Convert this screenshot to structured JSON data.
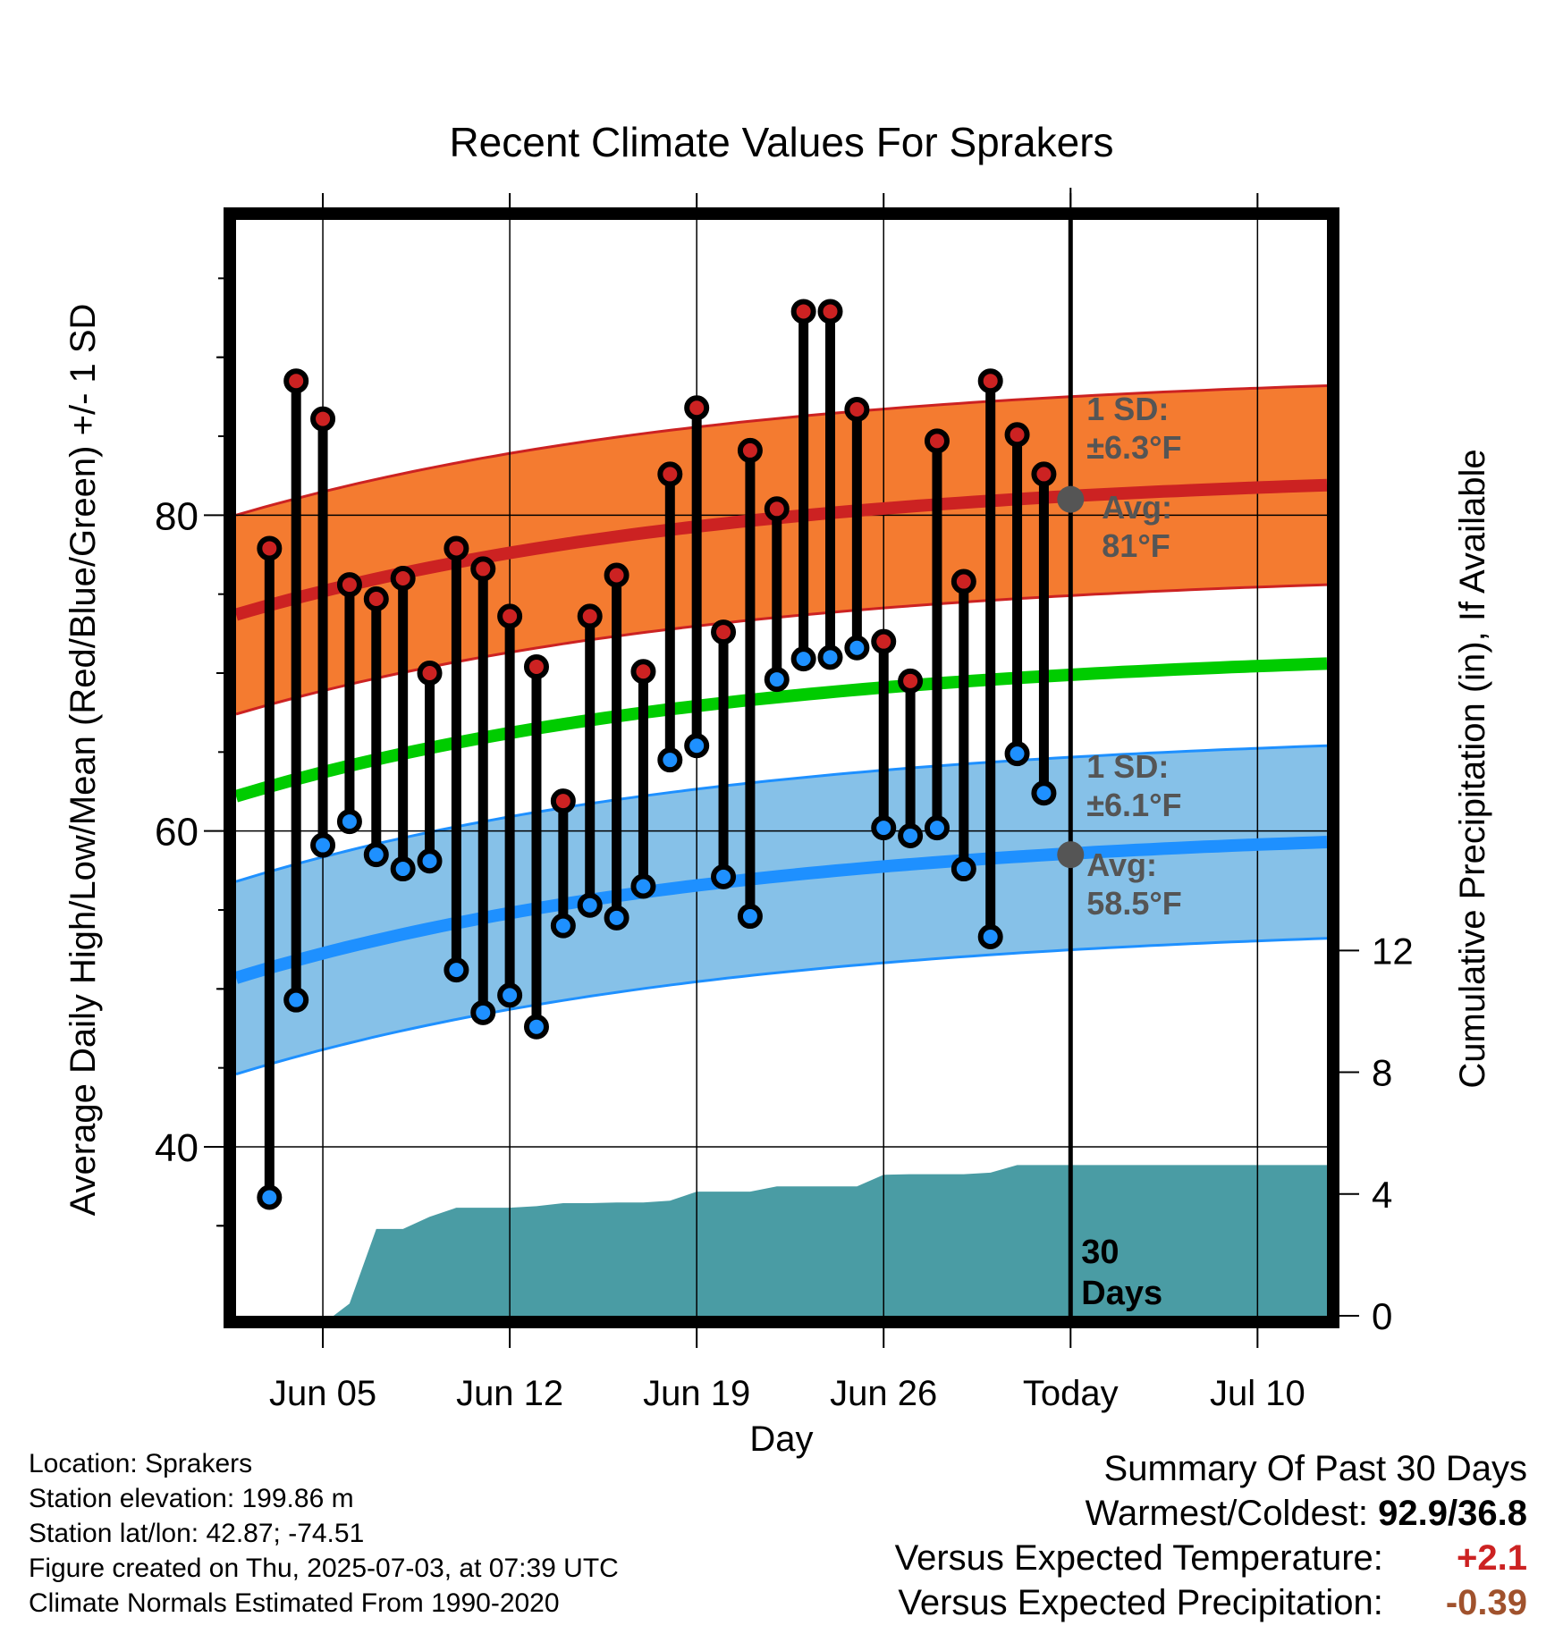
{
  "chart_data": {
    "type": "line",
    "title": "Recent Climate Values For Sprakers",
    "xlabel": "Day",
    "ylabel": "Average Daily High/Low/Mean (Red/Blue/Green) +/- 1 SD",
    "y2label": "Cumulative Precipitation (in), If Available",
    "x_tick_labels": [
      "Jun 05",
      "Jun 12",
      "Jun 19",
      "Jun 26",
      "Today",
      "Jul 10"
    ],
    "x_tick_days": [
      5,
      12,
      19,
      26,
      33,
      40
    ],
    "xlim": [
      1.75,
      42.6
    ],
    "ylim": [
      29.3,
      98.7
    ],
    "y_ticks": [
      40,
      60,
      80
    ],
    "y2lim": [
      0,
      36
    ],
    "y2_ticks": [
      0,
      4,
      8,
      12
    ],
    "today_day": 33,
    "today_label_lines": [
      "30",
      "Days"
    ],
    "normal_high": {
      "start": 73.7,
      "end": 81.9,
      "sd": 6.3,
      "color": "#cc2222",
      "band_color": "#f47b30"
    },
    "normal_low": {
      "start": 50.7,
      "end": 59.3,
      "sd": 6.1,
      "color": "#1e90ff",
      "band_color": "#86c1e8"
    },
    "normal_mean": {
      "start": 62.2,
      "end": 70.6,
      "color": "#00cc00"
    },
    "high_annotation": {
      "sd_label": "1 SD:",
      "sd_value": "±6.3°F",
      "avg_label": "Avg:",
      "avg_value": "81°F",
      "marker_value": 81
    },
    "low_annotation": {
      "sd_label": "1 SD:",
      "sd_value": "±6.1°F",
      "avg_label": "Avg:",
      "avg_value": "58.5°F",
      "marker_value": 58.5
    },
    "days": [
      3,
      4,
      5,
      6,
      7,
      8,
      9,
      10,
      11,
      12,
      13,
      14,
      15,
      16,
      17,
      18,
      19,
      20,
      21,
      22,
      23,
      24,
      25,
      26,
      27,
      28,
      29,
      30,
      31,
      32
    ],
    "series": [
      {
        "name": "High",
        "color": "#cc2222",
        "values": [
          77.9,
          88.5,
          86.1,
          75.6,
          74.7,
          76.0,
          70.0,
          77.9,
          76.6,
          73.6,
          70.4,
          61.9,
          73.6,
          76.2,
          70.1,
          82.6,
          86.8,
          72.6,
          84.1,
          80.4,
          92.9,
          92.9,
          86.7,
          72.0,
          69.5,
          84.7,
          75.8,
          88.5,
          85.1,
          82.6
        ]
      },
      {
        "name": "Low",
        "color": "#1e90ff",
        "values": [
          36.8,
          49.3,
          59.1,
          60.6,
          58.5,
          57.6,
          58.1,
          51.2,
          48.5,
          49.6,
          47.6,
          54.0,
          55.3,
          54.5,
          56.5,
          64.5,
          65.4,
          57.1,
          54.6,
          69.6,
          70.9,
          71.0,
          71.6,
          60.2,
          59.7,
          60.2,
          57.6,
          53.3,
          64.9,
          62.4
        ]
      }
    ],
    "precip": {
      "color": "#4a9ca4",
      "days": [
        1.75,
        5.4,
        6.0,
        7.0,
        8.0,
        9.0,
        10.0,
        11.0,
        12.0,
        13.0,
        14.0,
        15.0,
        16.0,
        17.0,
        18.0,
        19.0,
        20.0,
        21.0,
        22.0,
        23.0,
        24.0,
        25.0,
        26.0,
        27.0,
        28.0,
        29.0,
        30.0,
        31.0,
        32.0,
        33.0,
        42.6
      ],
      "values": [
        0,
        0,
        0.4,
        2.85,
        2.85,
        3.25,
        3.55,
        3.55,
        3.55,
        3.6,
        3.7,
        3.7,
        3.72,
        3.72,
        3.78,
        4.08,
        4.08,
        4.08,
        4.25,
        4.25,
        4.25,
        4.25,
        4.63,
        4.65,
        4.65,
        4.65,
        4.7,
        4.95,
        4.95,
        4.95,
        4.95
      ]
    }
  },
  "footer": {
    "location": "Location: Sprakers",
    "elevation": "Station elevation: 199.86 m",
    "latlon": "Station lat/lon: 42.87; -74.51",
    "created": "Figure created on Thu, 2025-07-03, at 07:39 UTC",
    "normals": "Climate Normals Estimated From 1990-2020"
  },
  "summary": {
    "title": "Summary Of Past 30 Days",
    "warm_cold_label": "Warmest/Coldest:",
    "warm_cold_value": "92.9/36.8",
    "temp_label": "Versus Expected Temperature:",
    "temp_value": "+2.1",
    "temp_color": "#cc2222",
    "precip_label": "Versus Expected Precipitation:",
    "precip_value": "-0.39",
    "precip_color": "#a0522d"
  }
}
